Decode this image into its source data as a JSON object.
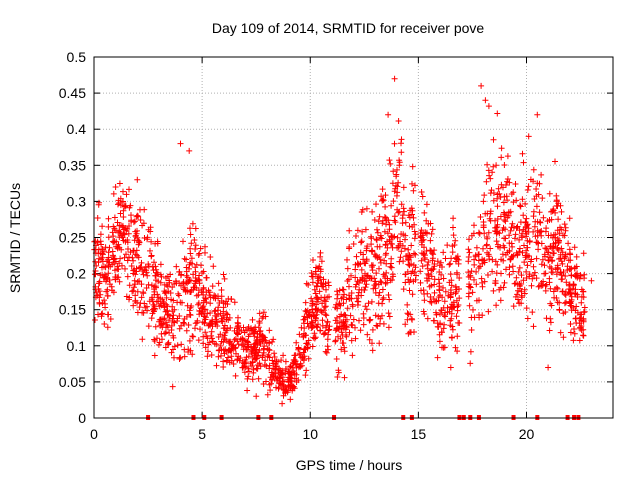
{
  "chart_data": {
    "type": "scatter",
    "title": "Day 109 of 2014, SRMTID for receiver pove",
    "xlabel": "GPS time / hours",
    "ylabel": "SRMTID / TECUs",
    "xlim": [
      0,
      24
    ],
    "ylim": [
      0,
      0.5
    ],
    "xticks": [
      0,
      5,
      10,
      15,
      20
    ],
    "yticks": [
      0,
      0.05,
      0.1,
      0.15,
      0.2,
      0.25,
      0.3,
      0.35,
      0.4,
      0.45,
      0.5
    ],
    "x_tick_labels": [
      "0",
      "5",
      "10",
      "15",
      "20"
    ],
    "y_tick_labels": [
      "0",
      "0.05",
      "0.1",
      "0.15",
      "0.2",
      "0.25",
      "0.3",
      "0.35",
      "0.4",
      "0.45",
      "0.5"
    ],
    "grid": true,
    "marker": "+",
    "color": "#ff0000",
    "series_name": "SRMTID",
    "envelope": {
      "x": [
        0,
        0.5,
        1.0,
        1.5,
        2.0,
        2.5,
        3.0,
        3.5,
        4.0,
        4.5,
        5.0,
        5.5,
        6.0,
        6.5,
        7.0,
        7.5,
        8.0,
        8.5,
        9.0,
        9.5,
        10.0,
        10.5,
        11.0,
        11.5,
        12.0,
        12.5,
        13.0,
        13.5,
        14.0,
        14.5,
        15.0,
        15.5,
        16.0,
        16.5,
        17.0,
        17.5,
        18.0,
        18.5,
        19.0,
        19.5,
        20.0,
        20.5,
        21.0,
        21.5,
        22.0,
        22.5,
        23.0
      ],
      "center": [
        0.21,
        0.2,
        0.24,
        0.26,
        0.21,
        0.19,
        0.16,
        0.14,
        0.14,
        0.18,
        0.17,
        0.14,
        0.13,
        0.11,
        0.09,
        0.1,
        0.09,
        0.06,
        0.05,
        0.08,
        0.14,
        0.18,
        0.12,
        0.13,
        0.18,
        0.2,
        0.19,
        0.23,
        0.3,
        0.2,
        0.24,
        0.22,
        0.16,
        0.16,
        0.2,
        0.18,
        0.25,
        0.28,
        0.26,
        0.24,
        0.22,
        0.27,
        0.22,
        0.24,
        0.18,
        0.16,
        0.15
      ],
      "spread": [
        0.05,
        0.06,
        0.05,
        0.05,
        0.06,
        0.06,
        0.05,
        0.04,
        0.07,
        0.06,
        0.05,
        0.04,
        0.04,
        0.04,
        0.03,
        0.03,
        0.03,
        0.02,
        0.02,
        0.03,
        0.04,
        0.04,
        0.04,
        0.04,
        0.06,
        0.07,
        0.07,
        0.07,
        0.09,
        0.07,
        0.06,
        0.06,
        0.05,
        0.05,
        0.06,
        0.06,
        0.08,
        0.08,
        0.07,
        0.07,
        0.07,
        0.07,
        0.07,
        0.07,
        0.06,
        0.04,
        0.03
      ]
    },
    "peaks": [
      {
        "x": 4.0,
        "y": 0.38
      },
      {
        "x": 4.4,
        "y": 0.37
      },
      {
        "x": 13.9,
        "y": 0.47
      },
      {
        "x": 13.6,
        "y": 0.42
      },
      {
        "x": 17.9,
        "y": 0.46
      },
      {
        "x": 18.1,
        "y": 0.44
      },
      {
        "x": 20.5,
        "y": 0.42
      },
      {
        "x": 20.1,
        "y": 0.39
      },
      {
        "x": 2.0,
        "y": 0.33
      },
      {
        "x": 1.0,
        "y": 0.32
      },
      {
        "x": 8.7,
        "y": 0.02
      },
      {
        "x": 7.5,
        "y": 0.03
      },
      {
        "x": 16.5,
        "y": 0.07
      },
      {
        "x": 21.0,
        "y": 0.07
      },
      {
        "x": 23.0,
        "y": 0.19
      }
    ],
    "gaps": [
      [
        10.9,
        11.15
      ],
      [
        14.9,
        15.05
      ],
      [
        16.9,
        17.3
      ],
      [
        22.7,
        24.0
      ]
    ],
    "bottom_markers_x": [
      2.5,
      4.6,
      5.1,
      5.9,
      7.6,
      8.2,
      11.1,
      14.3,
      14.7,
      16.9,
      17.1,
      17.4,
      17.8,
      19.4,
      20.5,
      21.9,
      22.2,
      22.4
    ]
  }
}
